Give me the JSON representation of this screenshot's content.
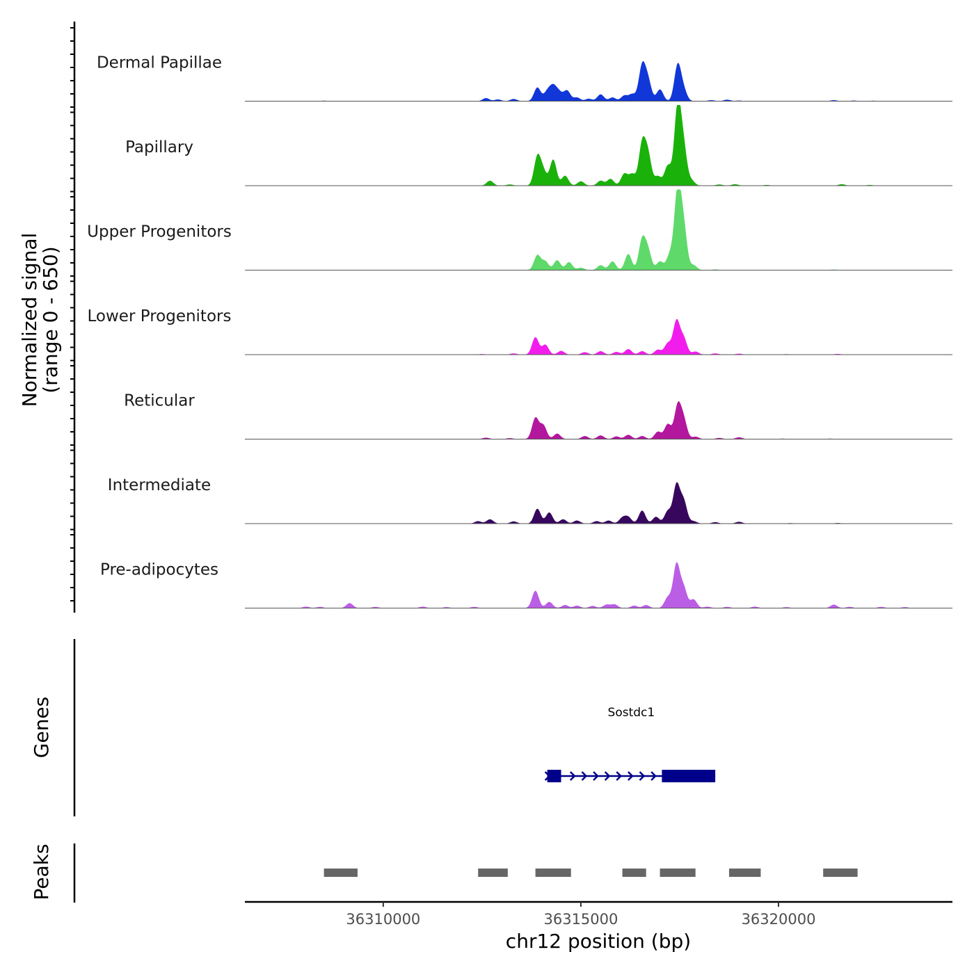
{
  "chart_data": {
    "type": "area",
    "title": "",
    "xlabel": "chr12 position (bp)",
    "ylabel_line1": "Normalized signal",
    "ylabel_line2": "(range 0 - 650)",
    "xlim": [
      36306500,
      36324400
    ],
    "ylim": [
      0,
      650
    ],
    "x_ticks": [
      36310000,
      36315000,
      36320000
    ],
    "x_tick_labels": [
      "36310000",
      "36315000",
      "36320000"
    ],
    "tracks": [
      {
        "name": "Dermal Papillae",
        "color": "#1237d8",
        "peaks": [
          [
            36307500,
            3
          ],
          [
            36308500,
            4
          ],
          [
            36309000,
            3
          ],
          [
            36309800,
            3
          ],
          [
            36312600,
            25
          ],
          [
            36312900,
            14
          ],
          [
            36313300,
            18
          ],
          [
            36313900,
            110
          ],
          [
            36314150,
            75
          ],
          [
            36314300,
            110
          ],
          [
            36314450,
            65
          ],
          [
            36314650,
            85
          ],
          [
            36314900,
            30
          ],
          [
            36315200,
            20
          ],
          [
            36315500,
            55
          ],
          [
            36315800,
            30
          ],
          [
            36316100,
            45
          ],
          [
            36316300,
            55
          ],
          [
            36316550,
            280
          ],
          [
            36316700,
            160
          ],
          [
            36317000,
            95
          ],
          [
            36317450,
            290
          ],
          [
            36317600,
            85
          ],
          [
            36318300,
            8
          ],
          [
            36318700,
            12
          ],
          [
            36319000,
            5
          ],
          [
            36320200,
            3
          ],
          [
            36321400,
            8
          ],
          [
            36321900,
            5
          ],
          [
            36322400,
            4
          ]
        ]
      },
      {
        "name": "Papillary",
        "color": "#1ab20a",
        "peaks": [
          [
            36307000,
            2
          ],
          [
            36308000,
            3
          ],
          [
            36309500,
            3
          ],
          [
            36311200,
            3
          ],
          [
            36312700,
            40
          ],
          [
            36313200,
            10
          ],
          [
            36313900,
            230
          ],
          [
            36314050,
            110
          ],
          [
            36314300,
            210
          ],
          [
            36314600,
            80
          ],
          [
            36315000,
            35
          ],
          [
            36315500,
            40
          ],
          [
            36315750,
            55
          ],
          [
            36316100,
            95
          ],
          [
            36316300,
            90
          ],
          [
            36316550,
            330
          ],
          [
            36316700,
            240
          ],
          [
            36316950,
            75
          ],
          [
            36317200,
            160
          ],
          [
            36317450,
            640
          ],
          [
            36317600,
            290
          ],
          [
            36317800,
            40
          ],
          [
            36318500,
            10
          ],
          [
            36318900,
            12
          ],
          [
            36319700,
            6
          ],
          [
            36321600,
            12
          ],
          [
            36322300,
            6
          ]
        ]
      },
      {
        "name": "Upper Progenitors",
        "color": "#5ed96a",
        "peaks": [
          [
            36309800,
            2
          ],
          [
            36311800,
            2
          ],
          [
            36313900,
            120
          ],
          [
            36314100,
            70
          ],
          [
            36314400,
            80
          ],
          [
            36314700,
            65
          ],
          [
            36315000,
            20
          ],
          [
            36315500,
            40
          ],
          [
            36315800,
            70
          ],
          [
            36316200,
            130
          ],
          [
            36316550,
            240
          ],
          [
            36316700,
            150
          ],
          [
            36317000,
            70
          ],
          [
            36317250,
            120
          ],
          [
            36317450,
            640
          ],
          [
            36317600,
            330
          ],
          [
            36317850,
            40
          ],
          [
            36318400,
            6
          ],
          [
            36319300,
            3
          ],
          [
            36321400,
            5
          ],
          [
            36322500,
            3
          ]
        ]
      },
      {
        "name": "Lower Progenitors",
        "color": "#f21dec",
        "peaks": [
          [
            36307300,
            2
          ],
          [
            36309200,
            2
          ],
          [
            36311500,
            3
          ],
          [
            36312500,
            5
          ],
          [
            36313300,
            10
          ],
          [
            36313850,
            140
          ],
          [
            36314100,
            80
          ],
          [
            36314500,
            30
          ],
          [
            36315100,
            20
          ],
          [
            36315500,
            28
          ],
          [
            36315900,
            22
          ],
          [
            36316200,
            45
          ],
          [
            36316550,
            28
          ],
          [
            36316950,
            40
          ],
          [
            36317200,
            90
          ],
          [
            36317420,
            270
          ],
          [
            36317600,
            130
          ],
          [
            36317900,
            25
          ],
          [
            36318400,
            10
          ],
          [
            36319000,
            8
          ],
          [
            36320200,
            4
          ],
          [
            36321500,
            6
          ],
          [
            36322300,
            3
          ]
        ]
      },
      {
        "name": "Reticular",
        "color": "#b3179e",
        "peaks": [
          [
            36307700,
            2
          ],
          [
            36309600,
            3
          ],
          [
            36311400,
            2
          ],
          [
            36312600,
            12
          ],
          [
            36313200,
            8
          ],
          [
            36313850,
            170
          ],
          [
            36314050,
            110
          ],
          [
            36314400,
            45
          ],
          [
            36315100,
            25
          ],
          [
            36315500,
            30
          ],
          [
            36315900,
            22
          ],
          [
            36316200,
            35
          ],
          [
            36316550,
            25
          ],
          [
            36316950,
            60
          ],
          [
            36317200,
            120
          ],
          [
            36317450,
            265
          ],
          [
            36317600,
            150
          ],
          [
            36317900,
            20
          ],
          [
            36318500,
            10
          ],
          [
            36319000,
            15
          ],
          [
            36320100,
            4
          ],
          [
            36321300,
            4
          ]
        ]
      },
      {
        "name": "Intermediate",
        "color": "#37075e",
        "peaks": [
          [
            36309000,
            3
          ],
          [
            36311300,
            3
          ],
          [
            36312400,
            20
          ],
          [
            36312700,
            35
          ],
          [
            36313300,
            18
          ],
          [
            36313900,
            120
          ],
          [
            36314200,
            90
          ],
          [
            36314550,
            35
          ],
          [
            36314900,
            25
          ],
          [
            36315400,
            20
          ],
          [
            36315700,
            25
          ],
          [
            36316050,
            45
          ],
          [
            36316200,
            50
          ],
          [
            36316550,
            105
          ],
          [
            36316900,
            55
          ],
          [
            36317200,
            100
          ],
          [
            36317420,
            310
          ],
          [
            36317600,
            180
          ],
          [
            36317850,
            20
          ],
          [
            36318400,
            12
          ],
          [
            36319000,
            15
          ],
          [
            36320300,
            4
          ],
          [
            36321500,
            5
          ]
        ]
      },
      {
        "name": "Pre-adipocytes",
        "color": "#bb5ee6",
        "peaks": [
          [
            36308050,
            12
          ],
          [
            36308400,
            10
          ],
          [
            36309150,
            40
          ],
          [
            36309800,
            10
          ],
          [
            36311000,
            12
          ],
          [
            36311600,
            8
          ],
          [
            36312300,
            10
          ],
          [
            36313850,
            140
          ],
          [
            36314200,
            50
          ],
          [
            36314600,
            25
          ],
          [
            36314900,
            20
          ],
          [
            36315300,
            18
          ],
          [
            36315650,
            28
          ],
          [
            36315850,
            30
          ],
          [
            36316350,
            20
          ],
          [
            36316650,
            25
          ],
          [
            36317200,
            85
          ],
          [
            36317420,
            350
          ],
          [
            36317600,
            160
          ],
          [
            36317850,
            70
          ],
          [
            36318200,
            12
          ],
          [
            36318700,
            10
          ],
          [
            36319400,
            12
          ],
          [
            36320200,
            8
          ],
          [
            36321400,
            28
          ],
          [
            36321800,
            10
          ],
          [
            36322600,
            10
          ],
          [
            36323200,
            8
          ]
        ]
      }
    ],
    "genes_panel_title": "Genes",
    "gene": {
      "name": "Sostdc1",
      "color": "#00008b",
      "start": 36314150,
      "end": 36318400,
      "strand": "+",
      "exons": [
        [
          36314150,
          36314500
        ],
        [
          36317050,
          36318400
        ]
      ]
    },
    "peaks_panel_title": "Peaks",
    "peak_color": "#666666",
    "peak_regions": [
      [
        36308500,
        36309350
      ],
      [
        36312400,
        36313150
      ],
      [
        36313850,
        36314750
      ],
      [
        36316050,
        36316650
      ],
      [
        36317000,
        36317900
      ],
      [
        36318750,
        36319550
      ],
      [
        36321130,
        36322000
      ]
    ]
  }
}
